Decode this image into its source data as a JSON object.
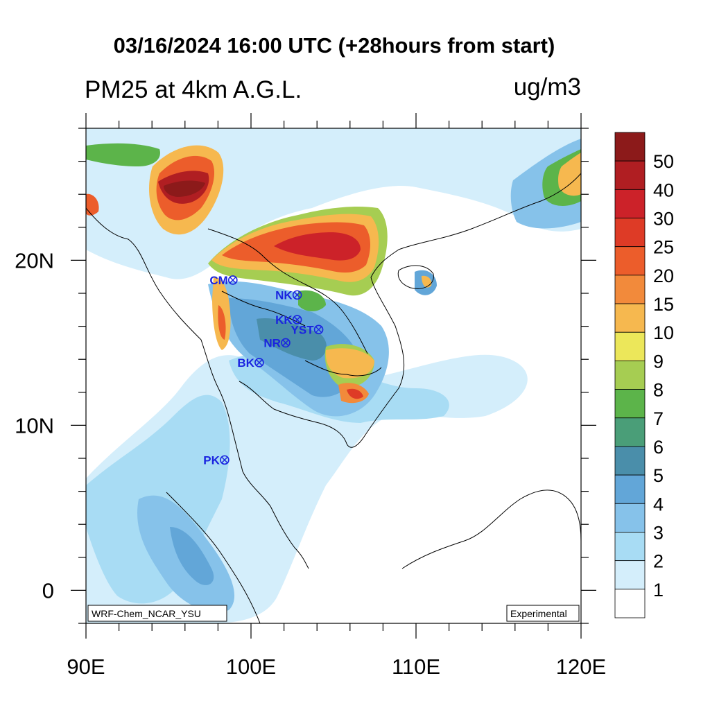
{
  "title": "03/16/2024 16:00 UTC (+28hours from start)",
  "subtitle": "PM25 at 4km A.G.L.",
  "units": "ug/m3",
  "lon_labels": [
    "90E",
    "100E",
    "110E",
    "120E"
  ],
  "lat_labels": [
    "20N",
    "10N",
    "0"
  ],
  "credit": "WRF-Chem_NCAR_YSU",
  "badge": "Experimental",
  "stations": [
    {
      "label": "CM",
      "lon": 98.9,
      "lat": 18.8
    },
    {
      "label": "NK",
      "lon": 102.8,
      "lat": 17.9
    },
    {
      "label": "KK",
      "lon": 102.8,
      "lat": 16.4
    },
    {
      "label": "YST",
      "lon": 104.1,
      "lat": 15.8
    },
    {
      "label": "NR",
      "lon": 102.1,
      "lat": 15.0
    },
    {
      "label": "BK",
      "lon": 100.5,
      "lat": 13.8
    },
    {
      "label": "PK",
      "lon": 98.4,
      "lat": 7.9
    }
  ],
  "colorbar": {
    "labels": [
      "50",
      "40",
      "30",
      "25",
      "20",
      "15",
      "10",
      "9",
      "8",
      "7",
      "6",
      "5",
      "4",
      "3",
      "2",
      "1"
    ],
    "colors": [
      "#8c1a1a",
      "#b01e22",
      "#cc2229",
      "#de3b26",
      "#ec5d2b",
      "#f28a3b",
      "#f6b84f",
      "#ece75a",
      "#a6cd52",
      "#5cb44a",
      "#4a9e78",
      "#4a8eaa",
      "#62a6d8",
      "#86c2ea",
      "#a8dcf4",
      "#d4eefb",
      "#ffffff"
    ]
  },
  "station_color": "#1a24e0"
}
